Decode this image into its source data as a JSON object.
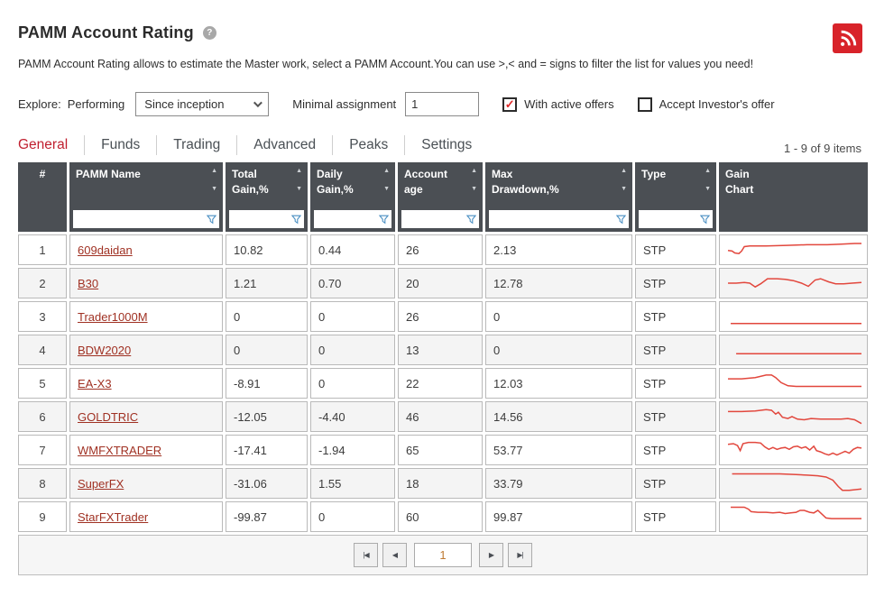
{
  "page": {
    "title": "PAMM Account Rating",
    "help_glyph": "?",
    "description": "PAMM Account Rating allows to estimate the Master work, select a PAMM Account.You can use >,< and = signs to filter the list for values you need!"
  },
  "filters": {
    "explore_label": "Explore:",
    "performing_label": "Performing",
    "period_selected": "Since inception",
    "minimal_assignment_label": "Minimal assignment",
    "minimal_assignment_value": "1",
    "with_active_offers": {
      "label": "With active offers",
      "checked": true,
      "check_glyph": "✓"
    },
    "accept_investors_offer": {
      "label": "Accept Investor's offer",
      "checked": false,
      "check_glyph": "✓"
    }
  },
  "tabs": [
    {
      "label": "General",
      "active": true
    },
    {
      "label": "Funds",
      "active": false
    },
    {
      "label": "Trading",
      "active": false
    },
    {
      "label": "Advanced",
      "active": false
    },
    {
      "label": "Peaks",
      "active": false
    },
    {
      "label": "Settings",
      "active": false
    }
  ],
  "items_count": "1 - 9 of 9 items",
  "table": {
    "columns": [
      {
        "key": "num",
        "label": "#",
        "sortable": false,
        "filterable": false
      },
      {
        "key": "name",
        "label": "PAMM Name",
        "sortable": true,
        "filterable": true
      },
      {
        "key": "total_gain",
        "label": "Total\nGain,%",
        "sortable": true,
        "filterable": true
      },
      {
        "key": "daily_gain",
        "label": "Daily\nGain,%",
        "sortable": true,
        "filterable": true
      },
      {
        "key": "age",
        "label": "Account\nage",
        "sortable": true,
        "filterable": true
      },
      {
        "key": "max_drawdown",
        "label": "Max\nDrawdown,%",
        "sortable": true,
        "filterable": true
      },
      {
        "key": "type",
        "label": "Type",
        "sortable": true,
        "filterable": true
      },
      {
        "key": "chart",
        "label": "Gain\nChart",
        "sortable": false,
        "filterable": false
      }
    ],
    "rows": [
      {
        "num": "1",
        "name": "609daidan",
        "total_gain": "10.82",
        "daily_gain": "0.44",
        "age": "26",
        "max_drawdown": "2.13",
        "type": "STP",
        "spark": [
          [
            2,
            21
          ],
          [
            5,
            22
          ],
          [
            7,
            25
          ],
          [
            10,
            26
          ],
          [
            12,
            22
          ],
          [
            14,
            15
          ],
          [
            18,
            14
          ],
          [
            30,
            14
          ],
          [
            45,
            13
          ],
          [
            60,
            12
          ],
          [
            75,
            12
          ],
          [
            85,
            11
          ],
          [
            95,
            10
          ],
          [
            100,
            10
          ]
        ]
      },
      {
        "num": "2",
        "name": "B30",
        "total_gain": "1.21",
        "daily_gain": "0.70",
        "age": "20",
        "max_drawdown": "12.78",
        "type": "STP",
        "spark": [
          [
            2,
            20
          ],
          [
            8,
            20
          ],
          [
            14,
            19
          ],
          [
            18,
            20
          ],
          [
            22,
            26
          ],
          [
            26,
            21
          ],
          [
            31,
            13
          ],
          [
            38,
            13
          ],
          [
            44,
            14
          ],
          [
            50,
            16
          ],
          [
            56,
            20
          ],
          [
            61,
            25
          ],
          [
            66,
            15
          ],
          [
            70,
            13
          ],
          [
            76,
            18
          ],
          [
            81,
            21
          ],
          [
            87,
            21
          ],
          [
            93,
            20
          ],
          [
            100,
            19
          ]
        ]
      },
      {
        "num": "3",
        "name": "Trader1000M",
        "total_gain": "0",
        "daily_gain": "0",
        "age": "26",
        "max_drawdown": "0",
        "type": "STP",
        "spark": [
          [
            4,
            31
          ],
          [
            100,
            31
          ]
        ]
      },
      {
        "num": "4",
        "name": "BDW2020",
        "total_gain": "0",
        "daily_gain": "0",
        "age": "13",
        "max_drawdown": "0",
        "type": "STP",
        "spark": [
          [
            8,
            26
          ],
          [
            100,
            26
          ]
        ]
      },
      {
        "num": "5",
        "name": "EA-X3",
        "total_gain": "-8.91",
        "daily_gain": "0",
        "age": "22",
        "max_drawdown": "12.03",
        "type": "STP",
        "spark": [
          [
            2,
            13
          ],
          [
            12,
            13
          ],
          [
            22,
            11
          ],
          [
            30,
            7
          ],
          [
            34,
            7
          ],
          [
            37,
            11
          ],
          [
            41,
            19
          ],
          [
            46,
            24
          ],
          [
            52,
            25
          ],
          [
            100,
            25
          ]
        ]
      },
      {
        "num": "6",
        "name": "GOLDTRIC",
        "total_gain": "-12.05",
        "daily_gain": "-4.40",
        "age": "46",
        "max_drawdown": "14.56",
        "type": "STP",
        "spark": [
          [
            2,
            12
          ],
          [
            12,
            12
          ],
          [
            22,
            11
          ],
          [
            30,
            9
          ],
          [
            34,
            10
          ],
          [
            37,
            16
          ],
          [
            39,
            13
          ],
          [
            42,
            21
          ],
          [
            46,
            23
          ],
          [
            49,
            20
          ],
          [
            53,
            24
          ],
          [
            58,
            25
          ],
          [
            63,
            23
          ],
          [
            70,
            24
          ],
          [
            78,
            24
          ],
          [
            85,
            24
          ],
          [
            90,
            23
          ],
          [
            95,
            25
          ],
          [
            100,
            31
          ]
        ]
      },
      {
        "num": "7",
        "name": "WMFXTRADER",
        "total_gain": "-17.41",
        "daily_gain": "-1.94",
        "age": "65",
        "max_drawdown": "53.77",
        "type": "STP",
        "spark": [
          [
            2,
            11
          ],
          [
            6,
            10
          ],
          [
            9,
            13
          ],
          [
            11,
            21
          ],
          [
            13,
            10
          ],
          [
            17,
            8
          ],
          [
            22,
            8
          ],
          [
            26,
            9
          ],
          [
            29,
            15
          ],
          [
            32,
            19
          ],
          [
            35,
            16
          ],
          [
            38,
            19
          ],
          [
            41,
            17
          ],
          [
            44,
            16
          ],
          [
            47,
            19
          ],
          [
            50,
            15
          ],
          [
            53,
            14
          ],
          [
            56,
            17
          ],
          [
            59,
            15
          ],
          [
            62,
            20
          ],
          [
            65,
            14
          ],
          [
            67,
            21
          ],
          [
            70,
            23
          ],
          [
            73,
            26
          ],
          [
            76,
            28
          ],
          [
            79,
            25
          ],
          [
            82,
            28
          ],
          [
            85,
            25
          ],
          [
            88,
            22
          ],
          [
            91,
            25
          ],
          [
            94,
            19
          ],
          [
            97,
            16
          ],
          [
            100,
            17
          ]
        ]
      },
      {
        "num": "8",
        "name": "SuperFX",
        "total_gain": "-31.06",
        "daily_gain": "1.55",
        "age": "18",
        "max_drawdown": "33.79",
        "type": "STP",
        "spark": [
          [
            5,
            5
          ],
          [
            40,
            5
          ],
          [
            52,
            6
          ],
          [
            60,
            7
          ],
          [
            68,
            8
          ],
          [
            74,
            10
          ],
          [
            79,
            15
          ],
          [
            83,
            25
          ],
          [
            86,
            31
          ],
          [
            91,
            31
          ],
          [
            100,
            29
          ]
        ]
      },
      {
        "num": "9",
        "name": "StarFXTrader",
        "total_gain": "-99.87",
        "daily_gain": "0",
        "age": "60",
        "max_drawdown": "99.87",
        "type": "STP",
        "spark": [
          [
            4,
            5
          ],
          [
            14,
            5
          ],
          [
            17,
            8
          ],
          [
            19,
            12
          ],
          [
            24,
            13
          ],
          [
            30,
            13
          ],
          [
            35,
            14
          ],
          [
            40,
            13
          ],
          [
            44,
            15
          ],
          [
            48,
            14
          ],
          [
            52,
            13
          ],
          [
            55,
            10
          ],
          [
            58,
            10
          ],
          [
            62,
            13
          ],
          [
            65,
            14
          ],
          [
            68,
            10
          ],
          [
            71,
            16
          ],
          [
            74,
            22
          ],
          [
            78,
            23
          ],
          [
            100,
            23
          ]
        ]
      }
    ]
  },
  "pager": {
    "first": "|◀",
    "prev": "◀",
    "page": "1",
    "next": "▶",
    "last": "▶|"
  },
  "icons": {
    "rss": "rss-feed",
    "funnel": "filter-funnel",
    "sort_up": "▲",
    "sort_down": "▼"
  },
  "colors": {
    "accent_red": "#c01f2f",
    "link_red": "#a03123",
    "header_bg": "#4b4f54",
    "spark_red": "#e2473d",
    "rss_red": "#d8232a",
    "funnel_blue": "#4a8fc2"
  }
}
